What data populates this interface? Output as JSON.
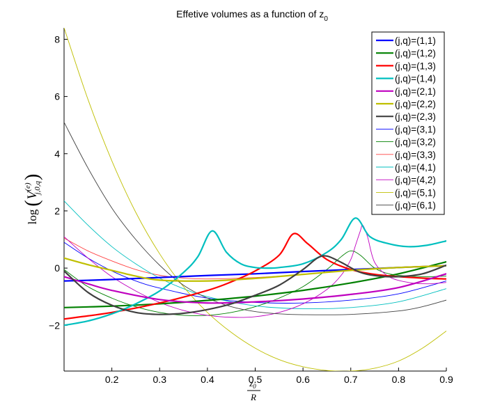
{
  "chart_data": {
    "type": "line",
    "title": "Effetive volumes as a function of z",
    "title_subscript": "0",
    "xlabel_num": "z",
    "xlabel_num_sub": "0",
    "xlabel_den": "R",
    "ylabel_prefix": "log",
    "ylabel_symbol": "V",
    "ylabel_superscript": "(e)",
    "ylabel_subscript": "j,0,q",
    "xlim": [
      0.1,
      0.9
    ],
    "ylim": [
      -3.6,
      8.4
    ],
    "xticks": [
      0.2,
      0.3,
      0.4,
      0.5,
      0.6,
      0.7,
      0.8,
      0.9
    ],
    "xtick_labels": [
      "0.2",
      "0.3",
      "0.4",
      "0.5",
      "0.6",
      "0.7",
      "0.8",
      "0.9"
    ],
    "yticks": [
      -2,
      0,
      2,
      4,
      6,
      8
    ],
    "ytick_labels": [
      "−2",
      "0",
      "2",
      "4",
      "6",
      "8"
    ],
    "legend_position": "top-right",
    "grid": false,
    "series": [
      {
        "name": "(j,q)=(1,1)",
        "color": "#0000ff",
        "width": 2.2,
        "x": [
          0.1,
          0.2,
          0.3,
          0.4,
          0.5,
          0.6,
          0.7,
          0.8,
          0.9
        ],
        "y": [
          -0.45,
          -0.4,
          -0.33,
          -0.26,
          -0.2,
          -0.12,
          -0.05,
          0.02,
          0.08
        ]
      },
      {
        "name": "(j,q)=(1,2)",
        "color": "#008000",
        "width": 2.2,
        "x": [
          0.1,
          0.2,
          0.3,
          0.4,
          0.5,
          0.6,
          0.7,
          0.8,
          0.9
        ],
        "y": [
          -1.38,
          -1.33,
          -1.25,
          -1.13,
          -0.98,
          -0.78,
          -0.52,
          -0.2,
          0.22
        ]
      },
      {
        "name": "(j,q)=(1,3)",
        "color": "#ff0000",
        "width": 2.2,
        "x": [
          0.1,
          0.2,
          0.3,
          0.4,
          0.45,
          0.5,
          0.55,
          0.58,
          0.61,
          0.65,
          0.7,
          0.75,
          0.8,
          0.85,
          0.9
        ],
        "y": [
          -1.78,
          -1.55,
          -1.22,
          -0.78,
          -0.48,
          -0.1,
          0.45,
          1.2,
          0.85,
          0.3,
          -0.05,
          -0.22,
          -0.3,
          -0.35,
          -0.38
        ]
      },
      {
        "name": "(j,q)=(1,4)",
        "color": "#00bfbf",
        "width": 2.2,
        "x": [
          0.1,
          0.15,
          0.2,
          0.25,
          0.3,
          0.35,
          0.38,
          0.41,
          0.44,
          0.47,
          0.5,
          0.53,
          0.55,
          0.6,
          0.65,
          0.68,
          0.71,
          0.74,
          0.78,
          0.82,
          0.86,
          0.9
        ],
        "y": [
          -2.0,
          -1.85,
          -1.6,
          -1.25,
          -0.8,
          -0.15,
          0.4,
          1.3,
          0.55,
          0.15,
          0.02,
          0.0,
          0.02,
          0.15,
          0.55,
          1.0,
          1.75,
          1.1,
          0.85,
          0.75,
          0.8,
          0.95
        ]
      },
      {
        "name": "(j,q)=(2,1)",
        "color": "#bf00bf",
        "width": 2.2,
        "x": [
          0.1,
          0.15,
          0.2,
          0.3,
          0.4,
          0.5,
          0.6,
          0.7,
          0.8,
          0.9
        ],
        "y": [
          -0.3,
          -0.55,
          -0.78,
          -1.1,
          -1.22,
          -1.18,
          -1.08,
          -0.92,
          -0.68,
          -0.2
        ]
      },
      {
        "name": "(j,q)=(2,2)",
        "color": "#bfbf00",
        "width": 2.2,
        "x": [
          0.1,
          0.15,
          0.2,
          0.25,
          0.3,
          0.4,
          0.5,
          0.6,
          0.7,
          0.8,
          0.9
        ],
        "y": [
          0.35,
          0.12,
          -0.08,
          -0.28,
          -0.42,
          -0.45,
          -0.36,
          -0.22,
          -0.08,
          0.02,
          0.08
        ]
      },
      {
        "name": "(j,q)=(2,3)",
        "color": "#404040",
        "width": 2.2,
        "x": [
          0.1,
          0.15,
          0.2,
          0.25,
          0.3,
          0.35,
          0.4,
          0.45,
          0.5,
          0.55,
          0.6,
          0.63,
          0.65,
          0.68,
          0.72,
          0.76,
          0.8,
          0.85,
          0.9
        ],
        "y": [
          -0.1,
          -0.85,
          -1.3,
          -1.55,
          -1.62,
          -1.58,
          -1.45,
          -1.25,
          -0.95,
          -0.6,
          -0.05,
          0.35,
          0.42,
          0.2,
          -0.15,
          -0.28,
          -0.3,
          -0.2,
          0.1
        ]
      },
      {
        "name": "(j,q)=(3,1)",
        "color": "#0000ff",
        "width": 0.9,
        "x": [
          0.1,
          0.15,
          0.2,
          0.25,
          0.3,
          0.4,
          0.5,
          0.6,
          0.7,
          0.8,
          0.9
        ],
        "y": [
          0.9,
          0.35,
          -0.1,
          -0.45,
          -0.7,
          -1.05,
          -1.2,
          -1.22,
          -1.12,
          -0.9,
          -0.45
        ]
      },
      {
        "name": "(j,q)=(3,2)",
        "color": "#008000",
        "width": 0.9,
        "x": [
          0.1,
          0.15,
          0.2,
          0.25,
          0.3,
          0.35,
          0.4,
          0.45,
          0.5,
          0.55,
          0.6,
          0.65,
          0.68,
          0.7,
          0.72,
          0.75,
          0.78,
          0.82,
          0.86,
          0.9
        ],
        "y": [
          -0.05,
          -0.65,
          -1.05,
          -1.35,
          -1.55,
          -1.65,
          -1.65,
          -1.55,
          -1.35,
          -1.05,
          -0.65,
          -0.05,
          0.4,
          0.6,
          0.45,
          0.0,
          -0.2,
          -0.28,
          -0.3,
          -0.28
        ]
      },
      {
        "name": "(j,q)=(3,3)",
        "color": "#ff4040",
        "width": 0.9,
        "x": [
          0.1,
          0.15,
          0.2,
          0.25,
          0.3,
          0.35,
          0.4,
          0.5,
          0.6,
          0.7,
          0.8,
          0.9
        ],
        "y": [
          1.05,
          0.6,
          0.25,
          -0.05,
          -0.25,
          -0.35,
          -0.38,
          -0.33,
          -0.22,
          -0.08,
          0.03,
          0.1
        ]
      },
      {
        "name": "(j,q)=(4,1)",
        "color": "#00bfbf",
        "width": 0.9,
        "x": [
          0.1,
          0.15,
          0.2,
          0.25,
          0.3,
          0.35,
          0.4,
          0.5,
          0.6,
          0.7,
          0.8,
          0.9
        ],
        "y": [
          2.35,
          1.5,
          0.75,
          0.15,
          -0.35,
          -0.72,
          -1.0,
          -1.32,
          -1.42,
          -1.38,
          -1.18,
          -0.72
        ]
      },
      {
        "name": "(j,q)=(4,2)",
        "color": "#bf00bf",
        "width": 0.9,
        "x": [
          0.1,
          0.15,
          0.2,
          0.25,
          0.3,
          0.35,
          0.4,
          0.45,
          0.5,
          0.55,
          0.6,
          0.65,
          0.68,
          0.7,
          0.71,
          0.72,
          0.725,
          0.735,
          0.75,
          0.78,
          0.82,
          0.86,
          0.9
        ],
        "y": [
          1.1,
          0.35,
          -0.3,
          -0.8,
          -1.2,
          -1.48,
          -1.65,
          -1.72,
          -1.7,
          -1.55,
          -1.25,
          -0.75,
          -0.25,
          0.3,
          0.8,
          1.3,
          1.5,
          1.1,
          0.2,
          -0.3,
          -0.5,
          -0.55,
          -0.5
        ]
      },
      {
        "name": "(j,q)=(5,1)",
        "color": "#bfbf00",
        "width": 0.9,
        "x": [
          0.1,
          0.15,
          0.2,
          0.25,
          0.3,
          0.35,
          0.4,
          0.45,
          0.5,
          0.55,
          0.6,
          0.65,
          0.7,
          0.75,
          0.8,
          0.85,
          0.9
        ],
        "y": [
          8.4,
          5.9,
          3.75,
          1.95,
          0.5,
          -0.65,
          -1.55,
          -2.25,
          -2.8,
          -3.2,
          -3.45,
          -3.58,
          -3.6,
          -3.5,
          -3.25,
          -2.8,
          -2.2
        ]
      },
      {
        "name": "(j,q)=(6,1)",
        "color": "#404040",
        "width": 0.9,
        "x": [
          0.1,
          0.15,
          0.2,
          0.25,
          0.3,
          0.35,
          0.4,
          0.45,
          0.5,
          0.55,
          0.6,
          0.7,
          0.8,
          0.85,
          0.9
        ],
        "y": [
          5.1,
          3.5,
          2.1,
          1.0,
          0.1,
          -0.6,
          -1.05,
          -1.35,
          -1.52,
          -1.6,
          -1.63,
          -1.62,
          -1.5,
          -1.35,
          -1.12
        ]
      }
    ]
  }
}
